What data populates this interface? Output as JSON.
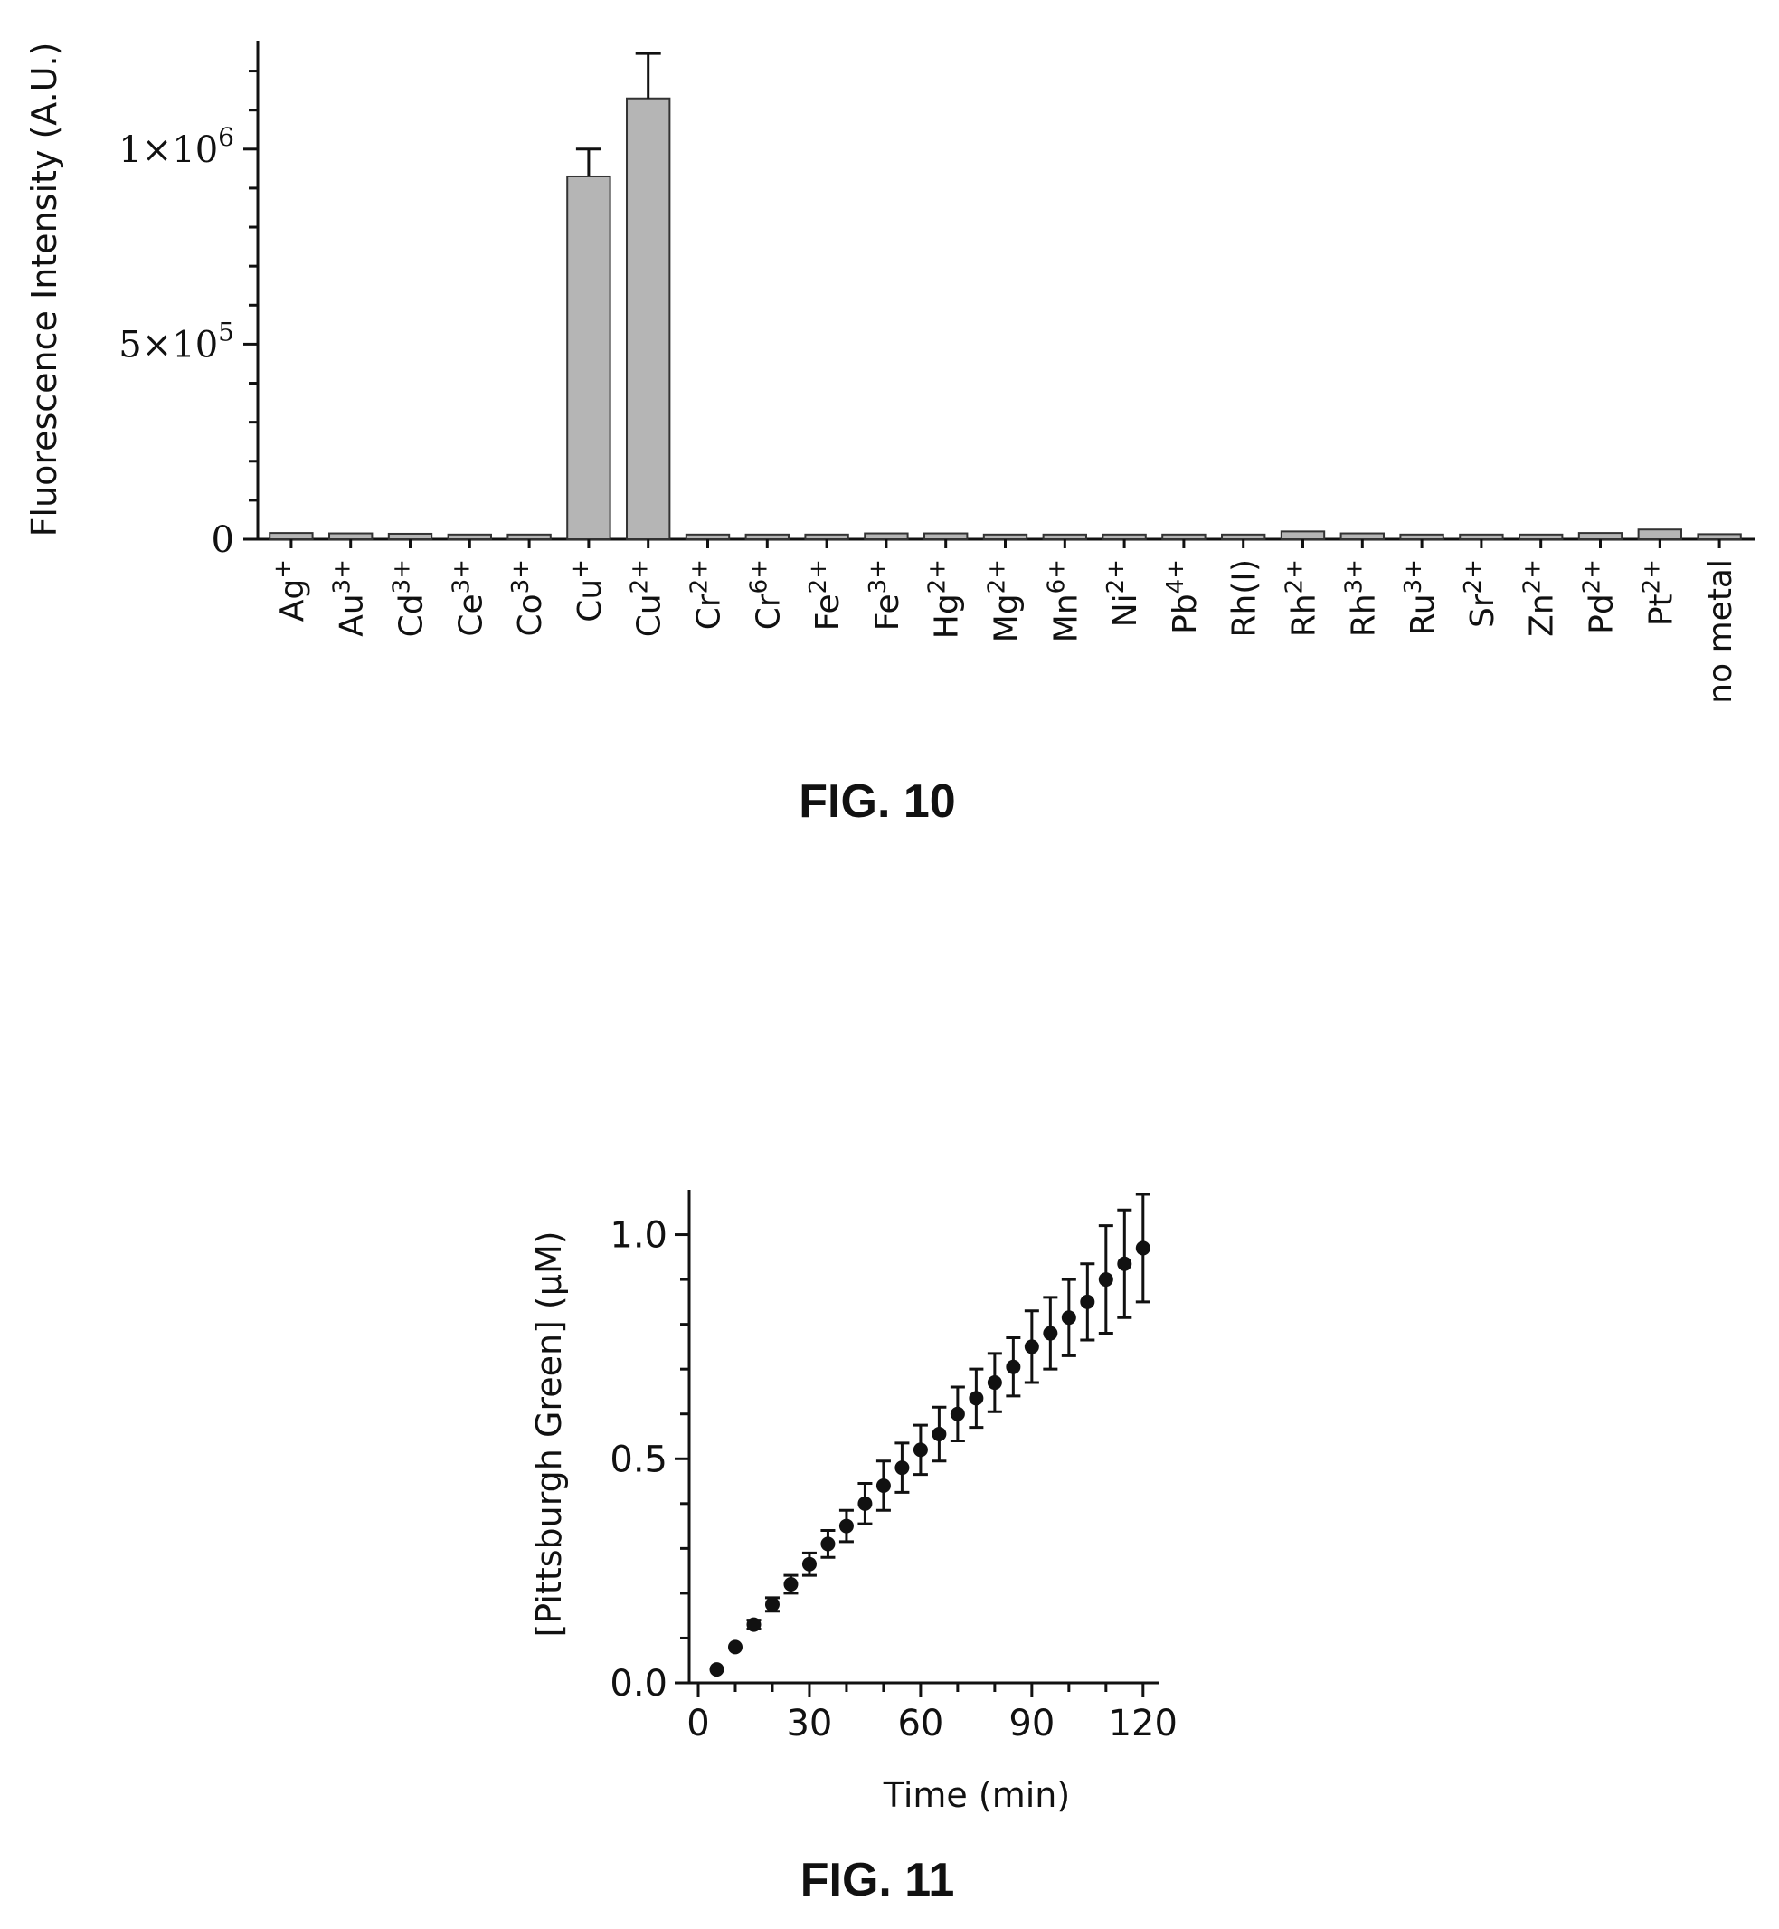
{
  "chart_data": [
    {
      "type": "bar",
      "caption": "FIG. 10",
      "ylabel": "Fluorescence Intensity (A.U.)",
      "xlabel": "",
      "ylim": [
        0,
        1250000
      ],
      "y_ticks": [
        {
          "value": 0,
          "base": "0",
          "exp": ""
        },
        {
          "value": 500000,
          "base": "5×10",
          "exp": "5"
        },
        {
          "value": 1000000,
          "base": "1×10",
          "exp": "6"
        }
      ],
      "categories": [
        {
          "base": "Ag",
          "sup": "+"
        },
        {
          "base": "Au",
          "sup": "3+"
        },
        {
          "base": "Cd",
          "sup": "3+"
        },
        {
          "base": "Ce",
          "sup": "3+"
        },
        {
          "base": "Co",
          "sup": "3+"
        },
        {
          "base": "Cu",
          "sup": "+"
        },
        {
          "base": "Cu",
          "sup": "2+"
        },
        {
          "base": "Cr",
          "sup": "2+"
        },
        {
          "base": "Cr",
          "sup": "6+"
        },
        {
          "base": "Fe",
          "sup": "2+"
        },
        {
          "base": "Fe",
          "sup": "3+"
        },
        {
          "base": "Hg",
          "sup": "2+"
        },
        {
          "base": "Mg",
          "sup": "2+"
        },
        {
          "base": "Mn",
          "sup": "6+"
        },
        {
          "base": "Ni",
          "sup": "2+"
        },
        {
          "base": "Pb",
          "sup": "4+"
        },
        {
          "base": "Rh(I)",
          "sup": ""
        },
        {
          "base": "Rh",
          "sup": "2+"
        },
        {
          "base": "Rh",
          "sup": "3+"
        },
        {
          "base": "Ru",
          "sup": "3+"
        },
        {
          "base": "Sr",
          "sup": "2+"
        },
        {
          "base": "Zn",
          "sup": "2+"
        },
        {
          "base": "Pd",
          "sup": "2+"
        },
        {
          "base": "Pt",
          "sup": "2+"
        },
        {
          "base": "no metal",
          "sup": ""
        }
      ],
      "values": [
        16000,
        15000,
        14000,
        12000,
        12000,
        930000,
        1130000,
        12000,
        12000,
        12000,
        15000,
        15000,
        12000,
        12000,
        12000,
        12000,
        12000,
        20000,
        15000,
        12000,
        12000,
        12000,
        16000,
        25000,
        13000
      ],
      "errors": [
        1500,
        1500,
        1500,
        1500,
        1500,
        70000,
        115000,
        1500,
        1500,
        1500,
        3000,
        3000,
        1500,
        1500,
        1500,
        1500,
        1500,
        4000,
        3000,
        1500,
        1500,
        1500,
        2500,
        4000,
        1500
      ],
      "bar_color": "#b5b5b5"
    },
    {
      "type": "scatter",
      "caption": "FIG. 11",
      "xlabel": "Time (min)",
      "ylabel": "[Pittsburgh Green] (μM)",
      "xlim": [
        0,
        122
      ],
      "ylim": [
        0,
        1.1
      ],
      "x_ticks": [
        "0",
        "30",
        "60",
        "90",
        "120"
      ],
      "y_ticks": [
        "0.0",
        "0.5",
        "1.0"
      ],
      "x": [
        5,
        10,
        15,
        20,
        25,
        30,
        35,
        40,
        45,
        50,
        55,
        60,
        65,
        70,
        75,
        80,
        85,
        90,
        95,
        100,
        105,
        110,
        115,
        120
      ],
      "y": [
        0.03,
        0.08,
        0.13,
        0.175,
        0.22,
        0.265,
        0.31,
        0.35,
        0.4,
        0.44,
        0.48,
        0.52,
        0.555,
        0.6,
        0.635,
        0.67,
        0.705,
        0.75,
        0.78,
        0.815,
        0.85,
        0.9,
        0.935,
        0.97
      ],
      "errors": [
        0.005,
        0.008,
        0.01,
        0.015,
        0.02,
        0.025,
        0.03,
        0.035,
        0.045,
        0.055,
        0.055,
        0.055,
        0.06,
        0.06,
        0.065,
        0.065,
        0.065,
        0.08,
        0.08,
        0.085,
        0.085,
        0.12,
        0.12,
        0.12
      ],
      "marker_color": "#111111"
    }
  ]
}
